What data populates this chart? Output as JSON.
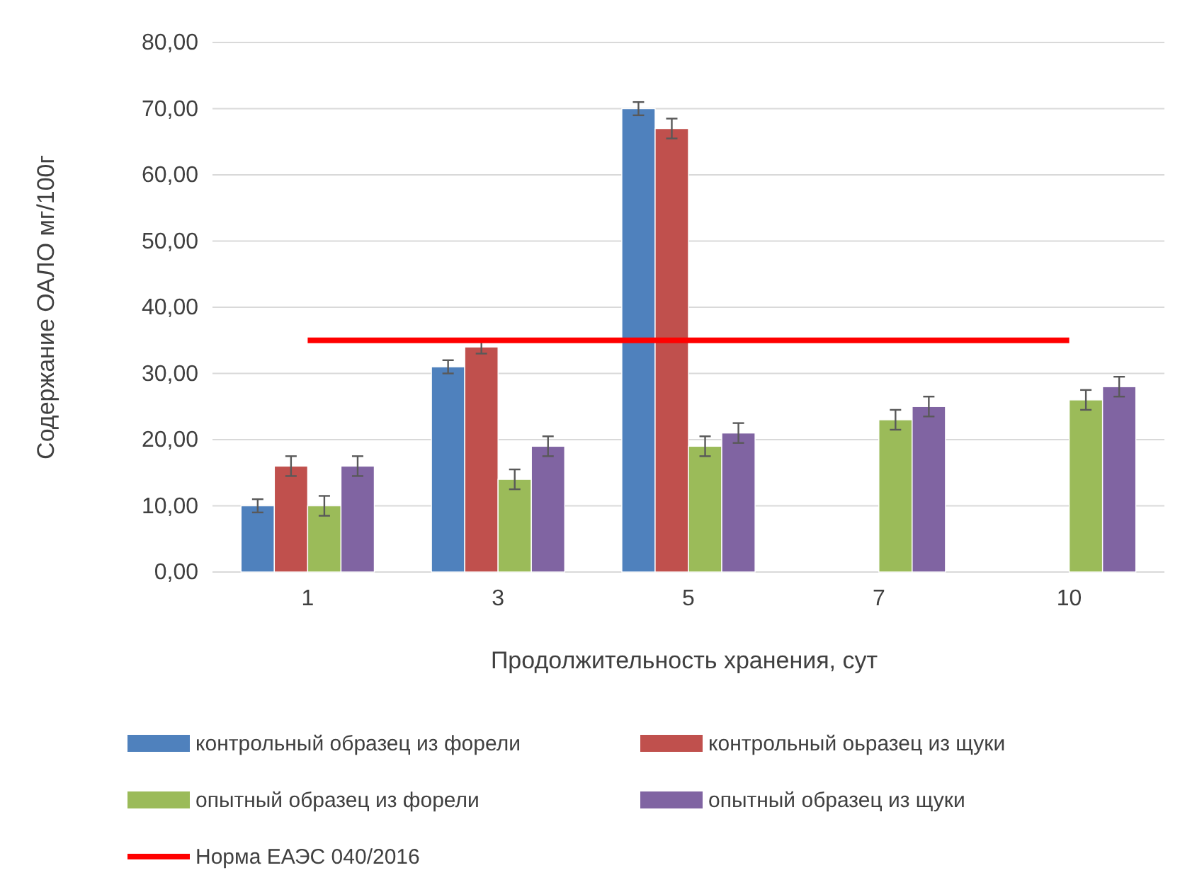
{
  "chart_data": {
    "type": "bar",
    "xlabel": "Продолжительность хранения, сут",
    "ylabel": "Содержание ОАЛО мг/100г",
    "categories": [
      "1",
      "3",
      "5",
      "7",
      "10"
    ],
    "series": [
      {
        "name": "контрольный образец из форели",
        "color": "#4f81bd",
        "values": [
          10,
          31,
          70,
          null,
          null
        ],
        "errors": [
          1,
          1,
          1,
          null,
          null
        ]
      },
      {
        "name": "контрольный оьразец из щуки",
        "color": "#c0504d",
        "values": [
          16,
          34,
          67,
          null,
          null
        ],
        "errors": [
          1.5,
          1,
          1.5,
          null,
          null
        ]
      },
      {
        "name": "опытный образец из форели",
        "color": "#9bbb59",
        "values": [
          10,
          14,
          19,
          23,
          26
        ],
        "errors": [
          1.5,
          1.5,
          1.5,
          1.5,
          1.5
        ]
      },
      {
        "name": "опытный образец из щуки",
        "color": "#8064a2",
        "values": [
          16,
          19,
          21,
          25,
          28
        ],
        "errors": [
          1.5,
          1.5,
          1.5,
          1.5,
          1.5
        ]
      }
    ],
    "ref_lines": [
      {
        "axis": "y",
        "value": 35,
        "label": "Норма ЕАЭС 040/2016",
        "color": "#ff0000"
      }
    ],
    "ylim": [
      0,
      80
    ],
    "yticks": [
      {
        "value": 0,
        "label": "0,00"
      },
      {
        "value": 10,
        "label": "10,00"
      },
      {
        "value": 20,
        "label": "20,00"
      },
      {
        "value": 30,
        "label": "30,00"
      },
      {
        "value": 40,
        "label": "40,00"
      },
      {
        "value": 50,
        "label": "50,00"
      },
      {
        "value": 60,
        "label": "60,00"
      },
      {
        "value": 70,
        "label": "70,00"
      },
      {
        "value": 80,
        "label": "80,00"
      }
    ],
    "grid": "y",
    "legend": "bottom"
  }
}
